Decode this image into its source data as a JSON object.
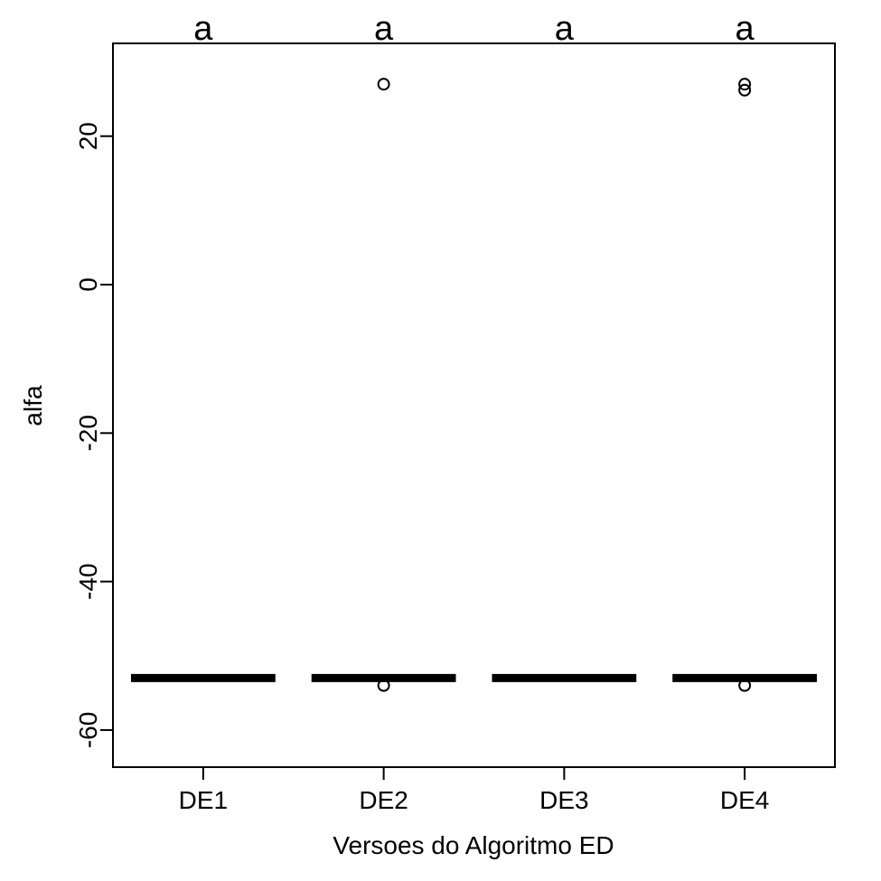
{
  "chart_data": {
    "type": "boxplot",
    "xlabel": "Versoes do Algoritmo ED",
    "ylabel": "alfa",
    "ylim": [
      -65,
      32.5
    ],
    "yticks": [
      -60,
      -40,
      -20,
      0,
      20
    ],
    "categories": [
      "DE1",
      "DE2",
      "DE3",
      "DE4"
    ],
    "group_letters": [
      "a",
      "a",
      "a",
      "a"
    ],
    "boxes": [
      {
        "category": "DE1",
        "min": -53,
        "q1": -53,
        "median": -53,
        "q3": -53,
        "max": -53,
        "outliers": []
      },
      {
        "category": "DE2",
        "min": -53,
        "q1": -53,
        "median": -53,
        "q3": -53,
        "max": -53,
        "outliers": [
          27,
          -54
        ]
      },
      {
        "category": "DE3",
        "min": -53,
        "q1": -53,
        "median": -53,
        "q3": -53,
        "max": -53,
        "outliers": []
      },
      {
        "category": "DE4",
        "min": -53,
        "q1": -53,
        "median": -53,
        "q3": -53,
        "max": -53,
        "outliers": [
          27,
          26.2,
          -54
        ]
      }
    ],
    "grid": false,
    "colors": {
      "stroke": "#000000",
      "background": "#ffffff"
    }
  }
}
